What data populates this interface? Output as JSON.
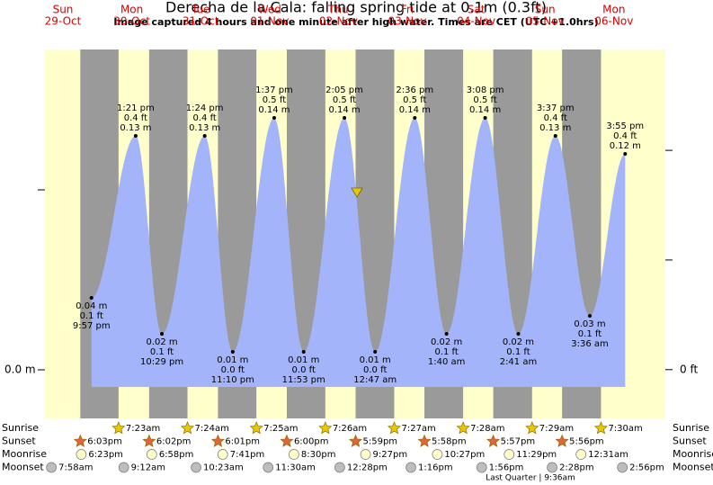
{
  "chart_data": {
    "type": "area",
    "title": "Derecha de la Cala: falling  spring tide at 0.1m (0.3ft)",
    "subtitle": "Image captured 4 hours and one minute after high water. Times are CET (UTC +1.0hrs)",
    "days": [
      {
        "weekday": "Sun",
        "date": "29-Oct"
      },
      {
        "weekday": "Mon",
        "date": "30-Oct"
      },
      {
        "weekday": "Tue",
        "date": "31-Oct"
      },
      {
        "weekday": "Wed",
        "date": "01-Nov"
      },
      {
        "weekday": "Thu",
        "date": "02-Nov"
      },
      {
        "weekday": "Fri",
        "date": "03-Nov"
      },
      {
        "weekday": "Sat",
        "date": "04-Nov"
      },
      {
        "weekday": "Sun",
        "date": "05-Nov"
      },
      {
        "weekday": "Mon",
        "date": "06-Nov"
      }
    ],
    "dates": [
      "29-Oct",
      "30-Oct",
      "30-Oct",
      "31-Oct",
      "31-Oct",
      "01-Nov",
      "01-Nov",
      "02-Nov",
      "03-Nov",
      "03-Nov",
      "04-Nov",
      "04-Nov",
      "05-Nov",
      "05-Nov",
      "06-Nov",
      "06-Nov"
    ],
    "times": [
      "9:57 pm",
      "1:21 pm",
      "10:29 pm",
      "1:24 pm",
      "11:10 pm",
      "1:37 pm",
      "11:53 pm",
      "2:05 pm",
      "12:47 am",
      "2:36 pm",
      "1:40 am",
      "3:08 pm",
      "2:41 am",
      "3:37 pm",
      "3:36 am",
      "3:55 pm"
    ],
    "values": [
      0.04,
      0.13,
      0.02,
      0.13,
      0.01,
      0.14,
      0.01,
      0.14,
      0.01,
      0.14,
      0.02,
      0.14,
      0.02,
      0.13,
      0.03,
      0.12
    ],
    "value_labels": [
      "0.04 m",
      "0.13 m",
      "0.02 m",
      "0.13 m",
      "0.01 m",
      "0.14 m",
      "0.01 m",
      "0.14 m",
      "0.01 m",
      "0.14 m",
      "0.02 m",
      "0.14 m",
      "0.02 m",
      "0.13 m",
      "0.03 m",
      "0.12 m"
    ],
    "ft_labels": [
      "0.1 ft",
      "0.4 ft",
      "0.1 ft",
      "0.4 ft",
      "0.0 ft",
      "0.5 ft",
      "0.0 ft",
      "0.5 ft",
      "0.0 ft",
      "0.5 ft",
      "0.1 ft",
      "0.5 ft",
      "0.1 ft",
      "0.4 ft",
      "0.1 ft",
      "0.4 ft"
    ],
    "color": "#a3b4fb",
    "day_color": "#ffffcc",
    "night_color": "#9a9a9a",
    "ylim": [
      -0.027,
      0.178
    ],
    "yticks": [
      {
        "value": 0,
        "label": "0.0 m"
      },
      {
        "value": 0.1,
        "label": null
      }
    ],
    "y2lim": [
      -0.089,
      0.584
    ],
    "y2ticks": [
      {
        "value": 0,
        "label": "0 ft"
      },
      {
        "value": 0.2,
        "label": null
      },
      {
        "value": 0.4,
        "label": null
      }
    ],
    "almanac": [
      {
        "label": "Sunrise",
        "marker": "star",
        "color": "#e8c800",
        "events": [
          {
            "date": "30-Oct",
            "time": "7:23am"
          },
          {
            "date": "31-Oct",
            "time": "7:24am"
          },
          {
            "date": "01-Nov",
            "time": "7:25am"
          },
          {
            "date": "02-Nov",
            "time": "7:26am"
          },
          {
            "date": "03-Nov",
            "time": "7:27am"
          },
          {
            "date": "04-Nov",
            "time": "7:28am"
          },
          {
            "date": "05-Nov",
            "time": "7:29am"
          },
          {
            "date": "06-Nov",
            "time": "7:30am"
          }
        ]
      },
      {
        "label": "Sunset",
        "marker": "star",
        "color": "#e2643a",
        "events": [
          {
            "date": "29-Oct",
            "time": "6:03pm"
          },
          {
            "date": "30-Oct",
            "time": "6:02pm"
          },
          {
            "date": "31-Oct",
            "time": "6:01pm"
          },
          {
            "date": "01-Nov",
            "time": "6:00pm"
          },
          {
            "date": "02-Nov",
            "time": "5:59pm"
          },
          {
            "date": "03-Nov",
            "time": "5:58pm"
          },
          {
            "date": "04-Nov",
            "time": "5:57pm"
          },
          {
            "date": "05-Nov",
            "time": "5:56pm"
          }
        ]
      },
      {
        "label": "Moonrise",
        "marker": "circle",
        "color": "#ffffcc",
        "events": [
          {
            "date": "29-Oct",
            "time": "6:23pm"
          },
          {
            "date": "30-Oct",
            "time": "6:58pm"
          },
          {
            "date": "31-Oct",
            "time": "7:41pm"
          },
          {
            "date": "01-Nov",
            "time": "8:30pm"
          },
          {
            "date": "02-Nov",
            "time": "9:27pm"
          },
          {
            "date": "03-Nov",
            "time": "10:27pm"
          },
          {
            "date": "04-Nov",
            "time": "11:29pm"
          },
          {
            "date": "06-Nov",
            "time": "12:31am"
          }
        ]
      },
      {
        "label": "Moonset",
        "marker": "circle",
        "color": "#bdbdbd",
        "events": [
          {
            "date": "29-Oct",
            "time": "7:58am"
          },
          {
            "date": "30-Oct",
            "time": "9:12am"
          },
          {
            "date": "31-Oct",
            "time": "10:23am"
          },
          {
            "date": "01-Nov",
            "time": "11:30am"
          },
          {
            "date": "02-Nov",
            "time": "12:28pm"
          },
          {
            "date": "03-Nov",
            "time": "1:16pm"
          },
          {
            "date": "04-Nov",
            "time": "1:56pm"
          },
          {
            "date": "05-Nov",
            "time": "2:28pm"
          },
          {
            "date": "06-Nov",
            "time": "2:56pm"
          }
        ]
      }
    ],
    "moon_phase": "Last Quarter | 9:36am"
  }
}
